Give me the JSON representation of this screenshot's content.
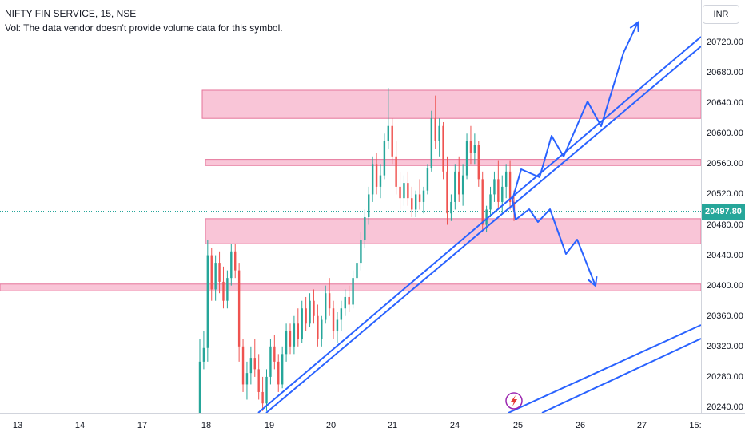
{
  "legend": {
    "symbol_line": "NIFTY FIN SERVICE, 15, NSE",
    "volume_note": "Vol: The data vendor doesn't provide volume data for this symbol."
  },
  "currency_button": "INR",
  "last_price": "20497.80",
  "colors": {
    "up": "#26a69a",
    "down": "#ef5350",
    "zone_fill": "#f8bbd0",
    "zone_stroke": "#e57399",
    "trend": "#2962ff",
    "last_price_bg": "#26a69a",
    "last_price_line": "#26a69a"
  },
  "chart_data": {
    "type": "candlestick",
    "y_axis": {
      "ticks": [
        "20720.00",
        "20680.00",
        "20640.00",
        "20600.00",
        "20560.00",
        "20520.00",
        "20480.00",
        "20440.00",
        "20400.00",
        "20360.00",
        "20320.00",
        "20280.00",
        "20240.00"
      ],
      "range": [
        20230,
        20745
      ]
    },
    "x_axis": {
      "ticks": [
        "13",
        "14",
        "17",
        "18",
        "19",
        "20",
        "21",
        "24",
        "25",
        "26",
        "27",
        "15:"
      ]
    },
    "last_price": 20497.8,
    "zones": [
      {
        "from": 20620,
        "to": 20657
      },
      {
        "from": 20558,
        "to": 20566
      },
      {
        "from": 20455,
        "to": 20488
      },
      {
        "from": 20393,
        "to": 20402
      }
    ],
    "candles": [
      [
        20100,
        20330,
        20090,
        20300
      ],
      [
        20300,
        20340,
        20290,
        20318
      ],
      [
        20318,
        20460,
        20300,
        20440
      ],
      [
        20440,
        20450,
        20380,
        20395
      ],
      [
        20395,
        20440,
        20380,
        20430
      ],
      [
        20430,
        20445,
        20390,
        20405
      ],
      [
        20405,
        20425,
        20370,
        20380
      ],
      [
        20380,
        20420,
        20370,
        20410
      ],
      [
        20410,
        20455,
        20400,
        20445
      ],
      [
        20445,
        20455,
        20410,
        20420
      ],
      [
        20420,
        20430,
        20300,
        20320
      ],
      [
        20320,
        20330,
        20260,
        20270
      ],
      [
        20270,
        20300,
        20250,
        20285
      ],
      [
        20285,
        20320,
        20270,
        20305
      ],
      [
        20305,
        20330,
        20280,
        20290
      ],
      [
        20290,
        20310,
        20250,
        20260
      ],
      [
        20260,
        20280,
        20235,
        20245
      ],
      [
        20245,
        20290,
        20235,
        20280
      ],
      [
        20280,
        20330,
        20270,
        20320
      ],
      [
        20320,
        20335,
        20290,
        20300
      ],
      [
        20300,
        20310,
        20260,
        20270
      ],
      [
        20270,
        20320,
        20265,
        20310
      ],
      [
        20310,
        20350,
        20300,
        20340
      ],
      [
        20340,
        20350,
        20310,
        20320
      ],
      [
        20320,
        20360,
        20310,
        20350
      ],
      [
        20350,
        20370,
        20320,
        20330
      ],
      [
        20330,
        20380,
        20325,
        20370
      ],
      [
        20370,
        20385,
        20340,
        20350
      ],
      [
        20350,
        20390,
        20345,
        20380
      ],
      [
        20380,
        20395,
        20350,
        20360
      ],
      [
        20360,
        20375,
        20320,
        20330
      ],
      [
        20330,
        20360,
        20320,
        20355
      ],
      [
        20355,
        20400,
        20350,
        20390
      ],
      [
        20390,
        20410,
        20360,
        20370
      ],
      [
        20370,
        20380,
        20330,
        20340
      ],
      [
        20340,
        20365,
        20325,
        20355
      ],
      [
        20355,
        20380,
        20340,
        20370
      ],
      [
        20370,
        20395,
        20360,
        20385
      ],
      [
        20385,
        20400,
        20365,
        20375
      ],
      [
        20375,
        20420,
        20370,
        20410
      ],
      [
        20410,
        20440,
        20400,
        20430
      ],
      [
        20430,
        20470,
        20420,
        20460
      ],
      [
        20460,
        20500,
        20450,
        20490
      ],
      [
        20490,
        20530,
        20480,
        20520
      ],
      [
        20520,
        20570,
        20510,
        20560
      ],
      [
        20560,
        20575,
        20520,
        20530
      ],
      [
        20530,
        20560,
        20515,
        20545
      ],
      [
        20545,
        20600,
        20540,
        20590
      ],
      [
        20590,
        20660,
        20580,
        20610
      ],
      [
        20610,
        20620,
        20560,
        20570
      ],
      [
        20570,
        20590,
        20520,
        20530
      ],
      [
        20530,
        20550,
        20500,
        20515
      ],
      [
        20515,
        20545,
        20505,
        20535
      ],
      [
        20535,
        20550,
        20505,
        20515
      ],
      [
        20515,
        20530,
        20490,
        20500
      ],
      [
        20500,
        20525,
        20490,
        20520
      ],
      [
        20520,
        20540,
        20500,
        20510
      ],
      [
        20510,
        20530,
        20495,
        20525
      ],
      [
        20525,
        20560,
        20520,
        20555
      ],
      [
        20555,
        20630,
        20550,
        20620
      ],
      [
        20620,
        20650,
        20580,
        20590
      ],
      [
        20590,
        20620,
        20570,
        20610
      ],
      [
        20610,
        20615,
        20540,
        20550
      ],
      [
        20550,
        20570,
        20480,
        20495
      ],
      [
        20495,
        20520,
        20485,
        20510
      ],
      [
        20510,
        20560,
        20500,
        20550
      ],
      [
        20550,
        20570,
        20510,
        20520
      ],
      [
        20520,
        20560,
        20505,
        20545
      ],
      [
        20545,
        20600,
        20540,
        20590
      ],
      [
        20590,
        20610,
        20560,
        20575
      ],
      [
        20575,
        20600,
        20560,
        20585
      ],
      [
        20585,
        20590,
        20530,
        20540
      ],
      [
        20540,
        20550,
        20470,
        20480
      ],
      [
        20480,
        20505,
        20470,
        20500
      ],
      [
        20500,
        20530,
        20490,
        20520
      ],
      [
        20520,
        20550,
        20510,
        20540
      ],
      [
        20540,
        20565,
        20500,
        20510
      ],
      [
        20510,
        20545,
        20495,
        20530
      ],
      [
        20530,
        20560,
        20515,
        20550
      ],
      [
        20550,
        20565,
        20500,
        20510
      ],
      [
        20510,
        20525,
        20485,
        20497.8
      ]
    ],
    "trendlines": [
      [
        [
          "19-00",
          20230
        ],
        [
          "future",
          20720
        ]
      ],
      [
        [
          "19-00",
          20230
        ],
        [
          "future",
          20700
        ]
      ],
      [
        [
          "25-00",
          20230
        ],
        [
          "future",
          20350
        ]
      ],
      [
        [
          "25-05",
          20230
        ],
        [
          "future",
          20330
        ]
      ]
    ],
    "projected_paths": [
      [
        [
          20520,
          "p0"
        ],
        [
          20555,
          "p1"
        ],
        [
          20540,
          "p2"
        ],
        [
          20600,
          "p3"
        ],
        [
          20560,
          "p4"
        ],
        [
          20640,
          "p5"
        ],
        [
          20610,
          "p6"
        ],
        [
          20700,
          "p7"
        ],
        [
          20740,
          "p8"
        ]
      ],
      [
        [
          20520,
          "q0"
        ],
        [
          20490,
          "q1"
        ],
        [
          20500,
          "q2"
        ],
        [
          20440,
          "q3"
        ],
        [
          20460,
          "q4"
        ],
        [
          20400,
          "q5"
        ]
      ]
    ]
  }
}
